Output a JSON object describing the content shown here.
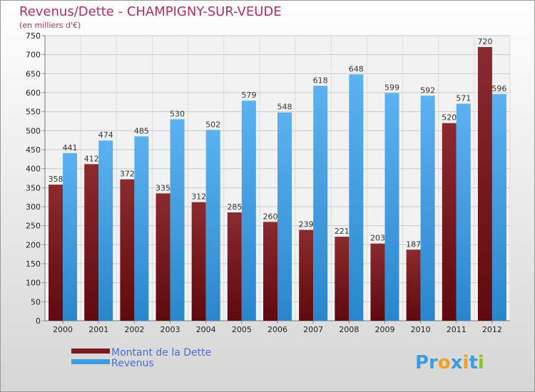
{
  "chart_data": {
    "type": "bar",
    "title": "Revenus/Dette - CHAMPIGNY-SUR-VEUDE",
    "subtitle": "(en milliers d'€)",
    "categories": [
      "2000",
      "2001",
      "2002",
      "2003",
      "2004",
      "2005",
      "2006",
      "2007",
      "2008",
      "2009",
      "2010",
      "2011",
      "2012"
    ],
    "series": [
      {
        "name": "Montant de la Dette",
        "color": "#7a1a1e",
        "values": [
          358,
          412,
          372,
          335,
          312,
          285,
          260,
          239,
          221,
          203,
          187,
          520,
          720
        ]
      },
      {
        "name": "Revenus",
        "color": "#3d9be0",
        "values": [
          441,
          474,
          485,
          530,
          502,
          579,
          548,
          618,
          648,
          599,
          592,
          571,
          596
        ]
      }
    ],
    "ylim": [
      0,
      750
    ],
    "yticks": [
      0,
      50,
      100,
      150,
      200,
      250,
      300,
      350,
      400,
      450,
      500,
      550,
      600,
      650,
      700,
      750
    ],
    "grid": true,
    "legend_position": "bottom-left"
  },
  "logo": {
    "parts": [
      "Pr",
      "o",
      "x",
      "i",
      "t",
      "i"
    ],
    "colors": [
      "#3d9be0",
      "#f0a020",
      "#3d9be0",
      "#f0a020",
      "#3d9be0",
      "#90c030"
    ]
  }
}
